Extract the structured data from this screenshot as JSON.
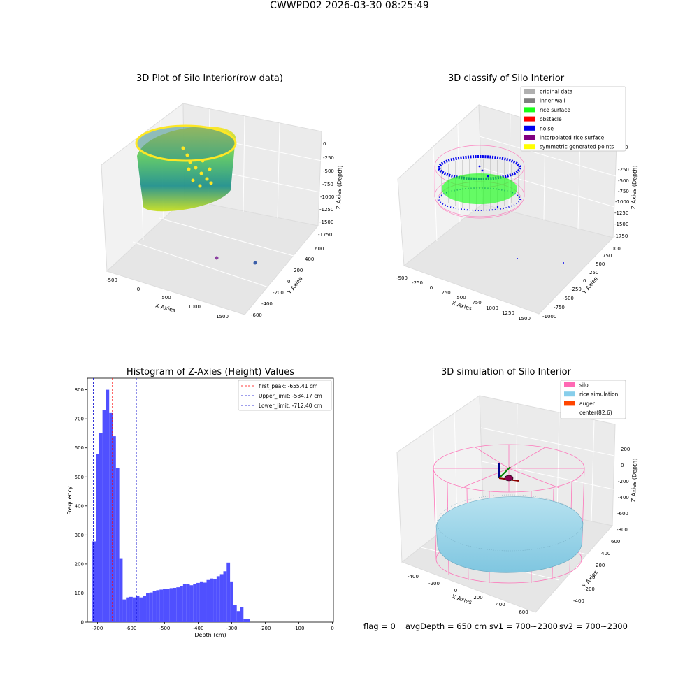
{
  "figure": {
    "title": "CWWPD02 2026-03-30 08:25:49",
    "footer": {
      "flag": "flag = 0",
      "avg_depth": "avgDepth = 650 cm",
      "sv1": "sv1 = 700~2300",
      "sv2": "sv2 = 700~2300"
    }
  },
  "chart_data": [
    {
      "type": "scatter",
      "subtype": "3d",
      "title": "3D Plot of Silo Interior(row data)",
      "xlabel": "X Axies",
      "ylabel": "Y Axies",
      "zlabel": "Z Axies (Depth)",
      "x_ticks": [
        "-500",
        "0",
        "500",
        "1000",
        "1500"
      ],
      "y_ticks": [
        "-600",
        "-400",
        "-200",
        "0",
        "200",
        "400",
        "600"
      ],
      "z_ticks": [
        "0",
        "-250",
        "-500",
        "-750",
        "-1000",
        "-1250",
        "-1500",
        "-1750"
      ],
      "colormap": "viridis",
      "colors": {
        "low": "#21918c",
        "mid": "#5ec962",
        "high": "#fde725"
      }
    },
    {
      "type": "scatter",
      "subtype": "3d",
      "title": "3D classify of Silo Interior",
      "xlabel": "X Axies",
      "ylabel": "Y Axies",
      "zlabel": "Z Axies (Depth)",
      "x_ticks": [
        "-500",
        "-250",
        "0",
        "250",
        "500",
        "750",
        "1000",
        "1250",
        "1500"
      ],
      "y_ticks": [
        "-1000",
        "-750",
        "-500",
        "-250",
        "0",
        "250",
        "500",
        "750",
        "1000"
      ],
      "z_ticks": [
        "0",
        "-250",
        "-500",
        "-750",
        "-1000",
        "-1250",
        "-1500",
        "-1750"
      ],
      "legend_position": "upper-right",
      "legend": [
        {
          "label": "original data",
          "color": "#b0b0b0"
        },
        {
          "label": "inner wall",
          "color": "#808080"
        },
        {
          "label": "rice surface",
          "color": "#19ff19"
        },
        {
          "label": "obstacle",
          "color": "#ff0000"
        },
        {
          "label": "noise",
          "color": "#0000ee"
        },
        {
          "label": "interpolated rice surface",
          "color": "#800080"
        },
        {
          "label": "symmetric generated points",
          "color": "#ffff00"
        }
      ],
      "wire_color": "#ff69b4"
    },
    {
      "type": "bar",
      "subtype": "histogram",
      "title": "Histogram of Z-Axies (Height) Values",
      "xlabel": "Depth (cm)",
      "ylabel": "Frequency",
      "xlim": [
        -730,
        3
      ],
      "ylim": [
        0,
        840
      ],
      "x_ticks": [
        -700,
        -600,
        -500,
        -400,
        -300,
        -200,
        -100,
        0
      ],
      "y_ticks": [
        0,
        100,
        200,
        300,
        400,
        500,
        600,
        700,
        800
      ],
      "bar_color": "#5050ff",
      "bin_start": -715,
      "bin_width": 10,
      "values": [
        278,
        580,
        650,
        730,
        800,
        720,
        640,
        530,
        220,
        78,
        85,
        87,
        85,
        90,
        85,
        90,
        100,
        102,
        107,
        110,
        112,
        115,
        115,
        117,
        118,
        120,
        123,
        132,
        130,
        127,
        132,
        135,
        140,
        136,
        145,
        150,
        148,
        158,
        165,
        175,
        205,
        140,
        58,
        38,
        52,
        10,
        12
      ],
      "lines": [
        {
          "label": "first_peak: -655.41 cm",
          "x": -655.41,
          "color": "#ff0000"
        },
        {
          "label": "Upper_limit: -584.17 cm",
          "x": -584.17,
          "color": "#0000cc"
        },
        {
          "label": "Lower_limit: -712.40 cm",
          "x": -712.4,
          "color": "#0000cc"
        }
      ],
      "legend_position": "upper-right"
    },
    {
      "type": "scatter",
      "subtype": "3d",
      "title": "3D simulation of Silo Interior",
      "xlabel": "X Axies",
      "ylabel": "Y Axies",
      "zlabel": "Z Axies (Depth)",
      "x_ticks": [
        "-400",
        "-200",
        "0",
        "200",
        "400",
        "600"
      ],
      "y_ticks": [
        "-400",
        "-200",
        "0",
        "200",
        "400",
        "600"
      ],
      "z_ticks": [
        "200",
        "0",
        "-200",
        "-400",
        "-600",
        "-800"
      ],
      "legend_position": "upper-right",
      "legend": [
        {
          "label": "silo",
          "color": "#ff69b4"
        },
        {
          "label": "rice simulation",
          "color": "#87ceeb"
        },
        {
          "label": "auger",
          "color": "#ff4500"
        },
        {
          "label": "center(82,6)",
          "color": ""
        }
      ]
    }
  ]
}
